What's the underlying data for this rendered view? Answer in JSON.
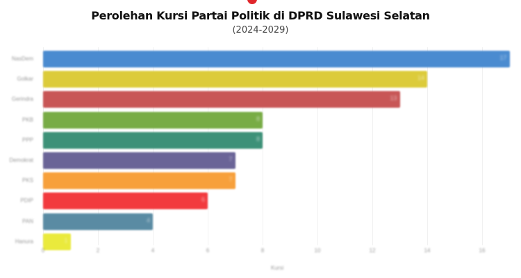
{
  "header": {
    "title": "Perolehan Kursi Partai Politik di DPRD Sulawesi Selatan",
    "subtitle": "(2024-2029)"
  },
  "chart_data": {
    "type": "bar",
    "orientation": "horizontal",
    "title": "Perolehan Kursi Partai Politik di DPRD Sulawesi Selatan",
    "subtitle": "(2024-2029)",
    "xlabel": "Kursi",
    "ylabel": "",
    "xlim": [
      0,
      17
    ],
    "x_ticks": [
      "0",
      "2",
      "4",
      "6",
      "8",
      "10",
      "12",
      "14",
      "16"
    ],
    "grid": true,
    "categories": [
      "NasDem",
      "Golkar",
      "Gerindra",
      "PKB",
      "PPP",
      "Demokrat",
      "PKS",
      "PDIP",
      "PAN",
      "Hanura"
    ],
    "values": [
      17,
      14,
      13,
      8,
      8,
      7,
      7,
      6,
      4,
      1
    ],
    "colors": [
      "#4a8bd0",
      "#dccb3a",
      "#c85656",
      "#78ac45",
      "#3d9178",
      "#6a6497",
      "#f7a03b",
      "#f23a3e",
      "#5a8ba3",
      "#eaea3c"
    ]
  }
}
